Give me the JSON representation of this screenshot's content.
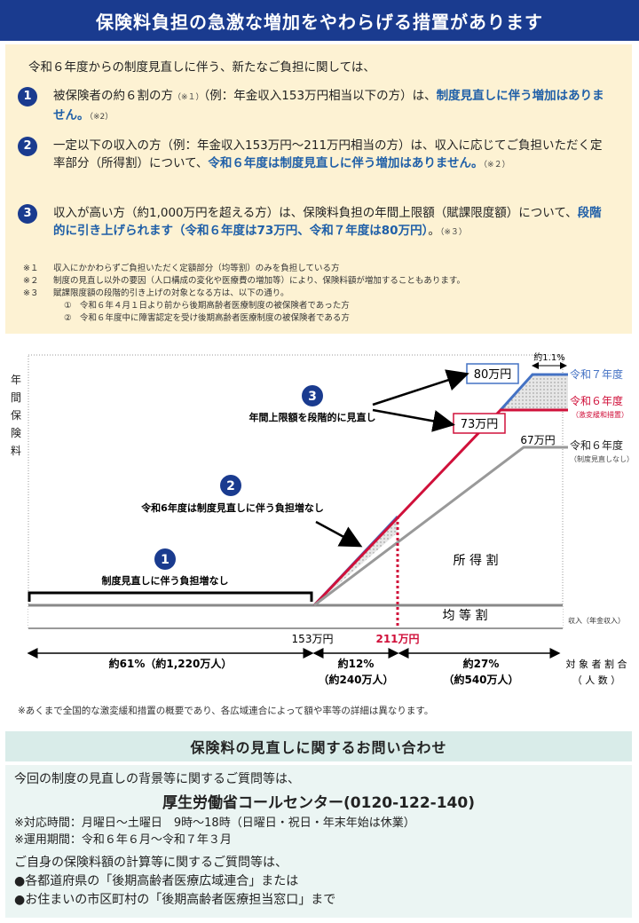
{
  "header": {
    "title": "保険料負担の急激な増加をやわらげる措置があります"
  },
  "intro": "令和６年度からの制度見直しに伴う、新たなご負担に関しては、",
  "items": [
    {
      "num": "1",
      "p1": "被保険者の約６割の方",
      "m1": "（※１）",
      "p2": "（例：年金収入153万円相当以下の方）は、",
      "b1": "制度見直しに伴う増加はありません。",
      "m2": "（※2）"
    },
    {
      "num": "2",
      "p1": "一定以下の収入の方（例：年金収入153万円～211万円相当の方）は、収入に応じてご負担いただく定率部分（所得割）について、",
      "b1": "令和６年度は制度見直しに伴う増加はありません。",
      "m2": "（※２）"
    },
    {
      "num": "3",
      "p1": "収入が高い方（約1,000万円を超える方）は、保険料負担の年間上限額（賦課限度額）について、",
      "b1": "段階的に引き上げられます（令和６年度は73万円、令和７年度は80万円）",
      "p2": "。",
      "m2": "（※３）"
    }
  ],
  "notes": [
    {
      "key": "※１",
      "text": "収入にかかわらずご負担いただく定額部分（均等割）のみを負担している方"
    },
    {
      "key": "※２",
      "text": "制度の見直し以外の要因（人口構成の変化や医療費の増加等）により、保険料額が増加することもあります。"
    },
    {
      "key": "※３",
      "text": "賦課限度額の段階的引き上げの対象となる方は、以下の通り。"
    }
  ],
  "sub_notes": [
    "①　令和６年４月１日より前から後期高齢者医療制度の被保険者であった方",
    "②　令和６年度中に障害認定を受け後期高齢者医療制度の被保険者である方"
  ],
  "chart": {
    "ylabel_chars": [
      "年",
      "間",
      "保",
      "険",
      "料"
    ],
    "label_80": "80万円",
    "label_73": "73万円",
    "label_67": "67万円",
    "pct_11": "約1.1%",
    "legend_r7": "令和７年度",
    "legend_r6": "令和６年度",
    "legend_r6_sub": "（激変緩和措置）",
    "legend_r6b": "令和６年度",
    "legend_r6b_sub": "（制度見直しなし）",
    "c1_num": "1",
    "c1_text": "制度見直しに伴う負担増なし",
    "c2_num": "2",
    "c2_text": "令和6年度は制度見直しに伴う負担増なし",
    "c3_num": "3",
    "c3_text": "年間上限額を段階的に見直し",
    "shotoku": "所 得 割",
    "kinto": "均 等 割",
    "xlabel": "収入（年金収入）",
    "x153": "153万円",
    "x211": "211万円",
    "seg1": "約61%（約1,220万人）",
    "seg2a": "約12%",
    "seg2b": "（約240万人）",
    "seg3a": "約27%",
    "seg3b": "（約540万人）",
    "target1": "対 象 者 割 合",
    "target2": "（ 人 数 ）",
    "footnote": "※あくまで全国的な激変緩和措置の概要であり、各広域連合によって額や率等の詳細は異なります。"
  },
  "contact": {
    "title": "保険料の見直しに関するお問い合わせ",
    "line1": "今回の制度の見直しの背景等に関するご質問等は、",
    "center": "厚生労働省コールセンター(0120-122-140)",
    "hours": "※対応時間：月曜日～土曜日　9時～18時（日曜日・祝日・年末年始は休業）",
    "period": "※運用期間：令和６年６月～令和７年３月",
    "line2": "ご自身の保険料額の計算等に関するご質問等は、",
    "bullet1": "●各都道府県の「後期高齢者医療広域連合」または",
    "bullet2": "●お住まいの市区町村の「後期高齢者医療担当窓口」まで"
  },
  "colors": {
    "navy": "#1a3b8f",
    "blue_line": "#4472c4",
    "red_line": "#d0103a",
    "gray_line": "#888888"
  }
}
